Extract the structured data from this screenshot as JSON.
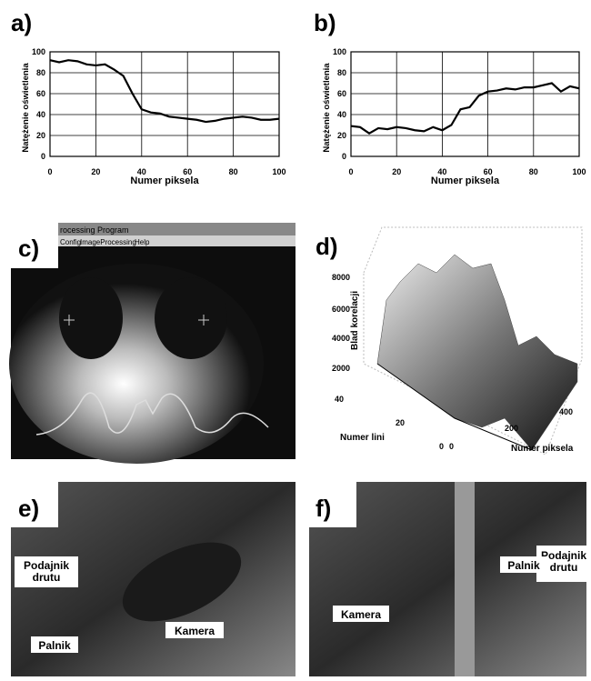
{
  "chart_data": [
    {
      "type": "line",
      "label": "a)",
      "xlabel": "Numer piksela",
      "ylabel": "Natężenie oświetlenia",
      "x": [
        0,
        4,
        8,
        12,
        16,
        20,
        24,
        28,
        32,
        36,
        40,
        44,
        48,
        52,
        56,
        60,
        64,
        68,
        72,
        76,
        80,
        84,
        88,
        92,
        96,
        100
      ],
      "values": [
        92,
        90,
        92,
        91,
        88,
        87,
        88,
        83,
        77,
        60,
        45,
        42,
        41,
        38,
        37,
        36,
        35,
        33,
        34,
        36,
        37,
        38,
        37,
        35,
        35,
        36
      ],
      "color": "#000000",
      "xlim": [
        0,
        100
      ],
      "ylim": [
        0,
        100
      ],
      "xticks": [
        0,
        20,
        40,
        60,
        80,
        100
      ],
      "yticks": [
        0,
        20,
        40,
        60,
        80,
        100
      ],
      "grid": true
    },
    {
      "type": "line",
      "label": "b)",
      "xlabel": "Numer piksela",
      "ylabel": "Natężenie oświetlenia",
      "x": [
        0,
        4,
        8,
        12,
        16,
        20,
        24,
        28,
        32,
        36,
        40,
        44,
        48,
        52,
        56,
        60,
        64,
        68,
        72,
        76,
        80,
        84,
        88,
        92,
        96,
        100
      ],
      "values": [
        29,
        28,
        22,
        27,
        26,
        28,
        27,
        25,
        24,
        28,
        25,
        30,
        45,
        47,
        58,
        62,
        63,
        65,
        64,
        66,
        66,
        68,
        70,
        62,
        67,
        65
      ],
      "color": "#000000",
      "xlim": [
        0,
        100
      ],
      "ylim": [
        0,
        100
      ],
      "xticks": [
        0,
        20,
        40,
        60,
        80,
        100
      ],
      "yticks": [
        0,
        20,
        40,
        60,
        80,
        100
      ],
      "grid": true
    }
  ],
  "panels": {
    "c": {
      "label": "c)",
      "window_title": "rocessing Program",
      "menu": [
        "Config",
        "ImageProcessing",
        "Help"
      ]
    },
    "d": {
      "label": "d)",
      "z_label": "Blad korelacji",
      "z_ticks": [
        "8000",
        "6000",
        "4000",
        "2000"
      ],
      "y_label": "Numer lini",
      "y_ticks": [
        "40",
        "20",
        "0"
      ],
      "x_label": "Numer piksela",
      "x_ticks": [
        "0",
        "200",
        "400"
      ]
    },
    "e": {
      "label": "e)",
      "annotations": [
        "Podajnik drutu",
        "Palnik",
        "Kamera"
      ]
    },
    "f": {
      "label": "f)",
      "annotations": [
        "Podajnik drutu",
        "Palnik",
        "Kamera"
      ]
    }
  }
}
